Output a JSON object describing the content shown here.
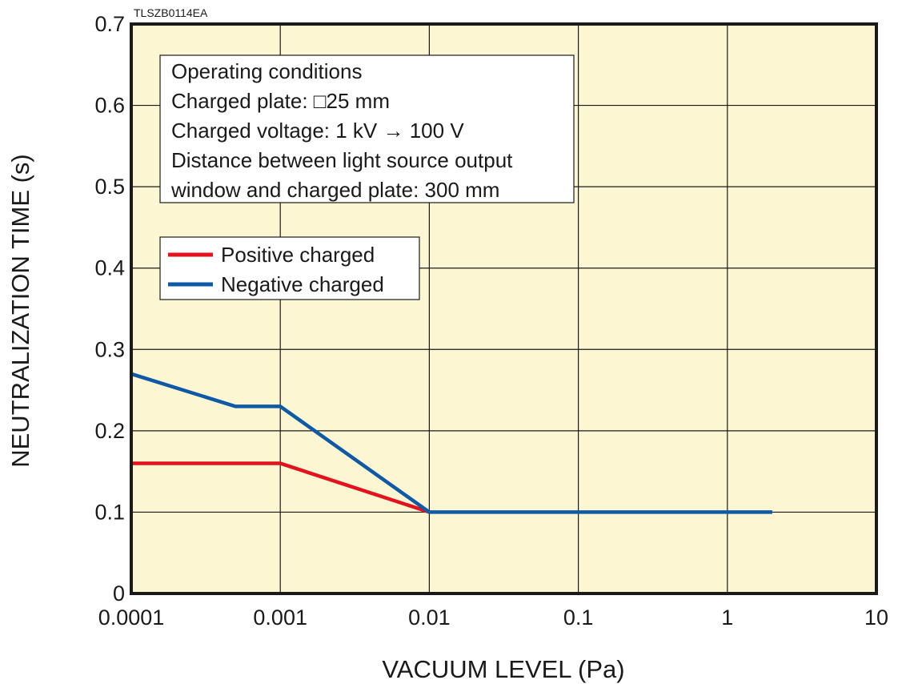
{
  "figure_code": "TLSZB0114EA",
  "colors": {
    "plot_background": "#fcf6d2",
    "grid": "#1a1a1a",
    "positive": "#e3121e",
    "negative": "#0f5aa6"
  },
  "notes": {
    "title": "Operating conditions",
    "plate_prefix": "Charged plate: ",
    "plate_symbol": "□",
    "plate_value": "25 mm",
    "voltage_prefix": "Charged voltage: 1 kV ",
    "voltage_arrow": "→",
    "voltage_suffix": " 100 V",
    "line3": "Distance between light source output",
    "line4": "window and charged plate: 300 mm"
  },
  "chart_data": {
    "type": "line",
    "title": "",
    "xlabel": "VACUUM LEVEL (Pa)",
    "ylabel": "NEUTRALIZATION TIME (s)",
    "x_scale": "log",
    "xlim": [
      0.0001,
      10
    ],
    "ylim": [
      0,
      0.7
    ],
    "x_ticks": [
      0.0001,
      0.001,
      0.01,
      0.1,
      1,
      10
    ],
    "x_tick_labels": [
      "0.0001",
      "0.001",
      "0.01",
      "0.1",
      "1",
      "10"
    ],
    "y_ticks": [
      0,
      0.1,
      0.2,
      0.3,
      0.4,
      0.5,
      0.6,
      0.7
    ],
    "y_tick_labels": [
      "0",
      "0.1",
      "0.2",
      "0.3",
      "0.4",
      "0.5",
      "0.6",
      "0.7"
    ],
    "grid": true,
    "legend_position": "upper-left",
    "series": [
      {
        "name": "Positive charged",
        "color": "#e3121e",
        "points": [
          [
            0.0001,
            0.16
          ],
          [
            0.001,
            0.16
          ],
          [
            0.01,
            0.1
          ]
        ]
      },
      {
        "name": "Negative charged",
        "color": "#0f5aa6",
        "points": [
          [
            0.0001,
            0.27
          ],
          [
            0.0005,
            0.23
          ],
          [
            0.001,
            0.23
          ],
          [
            0.01,
            0.1
          ],
          [
            2,
            0.1
          ]
        ]
      }
    ]
  }
}
